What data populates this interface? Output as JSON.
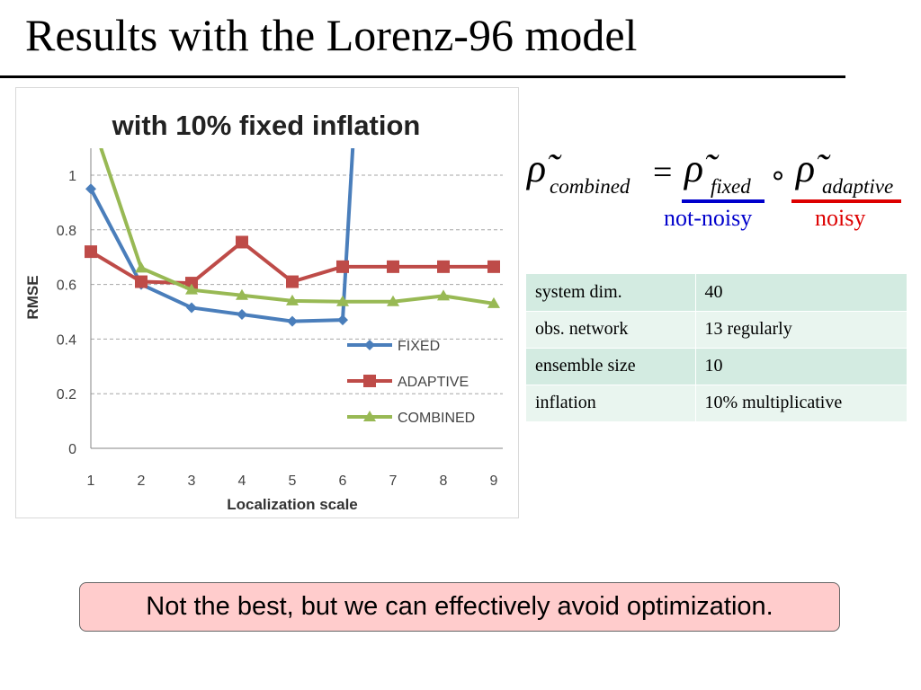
{
  "slide": {
    "title": "Results with the Lorenz-96 model",
    "formula": {
      "lhs_sub": "combined",
      "eq": "=",
      "fixed_sub": "fixed",
      "op": "∘",
      "adaptive_sub": "adaptive",
      "label_fixed": "not-noisy",
      "label_adaptive": "noisy"
    },
    "params": [
      {
        "key": "system dim.",
        "value": "40"
      },
      {
        "key": "obs. network",
        "value": "13 regularly"
      },
      {
        "key": "ensemble size",
        "value": "10"
      },
      {
        "key": "inflation",
        "value": "10% multiplicative"
      }
    ],
    "callout": "Not the best, but we can effectively avoid optimization."
  },
  "chart_data": {
    "type": "line",
    "title": "with 10% fixed inflation",
    "xlabel": "Localization scale",
    "ylabel": "RMSE",
    "x": [
      1,
      2,
      3,
      4,
      5,
      6,
      7,
      8,
      9
    ],
    "ylim": [
      0,
      1.1
    ],
    "yticks": [
      "0",
      "0.2",
      "0.4",
      "0.6",
      "0.8",
      "1"
    ],
    "grid": "horizontal dashed",
    "legend_position": "bottom-right",
    "series": [
      {
        "name": "FIXED",
        "color": "#4a7ebb",
        "marker": "diamond",
        "x": [
          1,
          2,
          3,
          4,
          5,
          6,
          6.2
        ],
        "values": [
          0.95,
          0.6,
          0.515,
          0.49,
          0.465,
          0.47,
          1.1
        ]
      },
      {
        "name": "ADAPTIVE",
        "color": "#be4b48",
        "marker": "square",
        "x": [
          1,
          2,
          3,
          4,
          5,
          6,
          7,
          8,
          9
        ],
        "values": [
          0.72,
          0.61,
          0.605,
          0.755,
          0.61,
          0.665,
          0.665,
          0.665,
          0.665
        ]
      },
      {
        "name": "COMBINED",
        "color": "#98b954",
        "marker": "triangle",
        "x": [
          1.2,
          2,
          3,
          4,
          5,
          6,
          7,
          8,
          9
        ],
        "values": [
          1.1,
          0.66,
          0.58,
          0.56,
          0.54,
          0.537,
          0.537,
          0.558,
          0.53
        ]
      }
    ]
  }
}
